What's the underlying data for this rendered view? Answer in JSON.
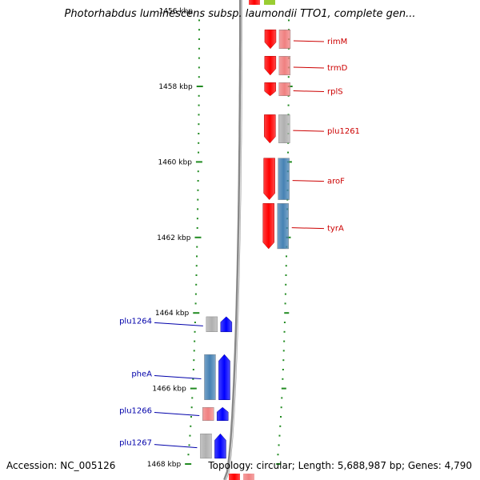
{
  "title": "Photorhabdus luminescens subsp. laumondii TTO1, complete gen...",
  "accession_text": "Accession: NC_005126",
  "topology_text": "Topology: circular; Length: 5,688,987 bp; Genes: 4,790",
  "colors": {
    "forward_gene": "#ff0000",
    "reverse_gene": "#0000ff",
    "forward_label": "#cc0000",
    "reverse_label": "#0000aa",
    "cds_blue": "#4682b4",
    "cds_gray": "#b0b0b0",
    "cds_pink": "#f08080",
    "tick": "#228b22",
    "backbone": "#888888"
  },
  "kbp_labels": [
    "1456 kbp",
    "1458 kbp",
    "1460 kbp",
    "1462 kbp",
    "1464 kbp",
    "1466 kbp",
    "1468 kbp"
  ],
  "forward_genes": [
    {
      "name": "rimM",
      "start_kbp": 1456.5,
      "end_kbp": 1457.0,
      "cds": "pink"
    },
    {
      "name": "trmD",
      "start_kbp": 1457.2,
      "end_kbp": 1457.7,
      "cds": "pink"
    },
    {
      "name": "rplS",
      "start_kbp": 1457.9,
      "end_kbp": 1458.25,
      "cds": "pink"
    },
    {
      "name": "plu1261",
      "start_kbp": 1458.75,
      "end_kbp": 1459.5,
      "cds": "gray"
    },
    {
      "name": "aroF",
      "start_kbp": 1459.9,
      "end_kbp": 1461.0,
      "cds": "blue"
    },
    {
      "name": "tyrA",
      "start_kbp": 1461.1,
      "end_kbp": 1462.3,
      "cds": "blue"
    }
  ],
  "reverse_genes": [
    {
      "name": "plu1264",
      "start_kbp": 1464.1,
      "end_kbp": 1464.5,
      "cds": "gray"
    },
    {
      "name": "pheA",
      "start_kbp": 1465.1,
      "end_kbp": 1466.3,
      "cds": "blue"
    },
    {
      "name": "plu1266",
      "start_kbp": 1466.5,
      "end_kbp": 1466.85,
      "cds": "pink"
    },
    {
      "name": "plu1267",
      "start_kbp": 1467.2,
      "end_kbp": 1467.85,
      "cds": "gray"
    }
  ]
}
